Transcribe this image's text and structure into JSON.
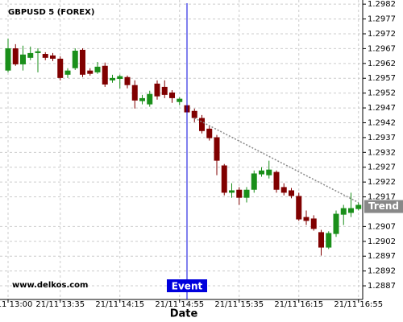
{
  "chart_data": {
    "type": "candlestick",
    "title": "GBPUSD 5 (FOREX)",
    "x_label": "Date",
    "watermark": "www.delkos.com",
    "categories": [
      "21/11 13:00",
      null,
      null,
      null,
      null,
      null,
      null,
      "21/11 13:35",
      null,
      null,
      null,
      null,
      null,
      null,
      null,
      "21/11 14:15",
      null,
      null,
      null,
      null,
      null,
      null,
      null,
      "21/11 14:55",
      null,
      null,
      null,
      null,
      null,
      null,
      null,
      "21/11 15:35",
      null,
      null,
      null,
      null,
      null,
      null,
      null,
      "21/11 16:15",
      null,
      null,
      null,
      null,
      null,
      null,
      null,
      "21/11 16:55"
    ],
    "open": [
      1.29596,
      1.29671,
      1.29617,
      1.29639,
      1.29655,
      1.29652,
      1.29647,
      1.29636,
      1.29582,
      1.29604,
      1.29666,
      1.29596,
      1.2959,
      1.29612,
      1.29563,
      1.29568,
      1.29574,
      1.29547,
      1.29493,
      1.29482,
      1.29552,
      1.29541,
      1.29522,
      1.2949,
      1.29479,
      1.2946,
      1.29436,
      1.294,
      1.29371,
      1.29276,
      1.29184,
      1.29194,
      1.29167,
      1.29194,
      1.29246,
      1.29243,
      1.29254,
      1.29203,
      1.29192,
      1.29173,
      1.29102,
      1.29097,
      1.29051,
      1.28999,
      1.29045,
      1.2911,
      1.29116,
      1.29129
    ],
    "high": [
      1.29704,
      1.29685,
      1.2968,
      1.29677,
      1.29671,
      1.29658,
      1.29655,
      1.29644,
      1.29604,
      1.29671,
      1.29671,
      1.29604,
      1.29625,
      1.29623,
      1.29582,
      1.29582,
      1.29579,
      1.29563,
      1.29514,
      1.29528,
      1.29563,
      1.29563,
      1.2953,
      1.29506,
      1.29487,
      1.29468,
      1.29446,
      1.29409,
      1.29379,
      1.29281,
      1.29216,
      1.29203,
      1.29203,
      1.29259,
      1.2927,
      1.29292,
      1.29259,
      1.29216,
      1.292,
      1.29184,
      1.29124,
      1.29108,
      1.29059,
      1.29054,
      1.29124,
      1.29143,
      1.29184,
      1.29151
    ],
    "low": [
      1.2959,
      1.29612,
      1.29596,
      1.29631,
      1.2959,
      1.29631,
      1.29628,
      1.29563,
      1.29571,
      1.29598,
      1.29574,
      1.29579,
      1.29585,
      1.29541,
      1.29555,
      1.29536,
      1.29536,
      1.29468,
      1.29482,
      1.29474,
      1.29498,
      1.29503,
      1.29487,
      1.29479,
      1.29449,
      1.29422,
      1.29384,
      1.2936,
      1.29243,
      1.29175,
      1.29167,
      1.29143,
      1.29151,
      1.29184,
      1.29238,
      1.29232,
      1.29184,
      1.29175,
      1.29165,
      1.29089,
      1.29075,
      1.29056,
      1.28972,
      1.28994,
      1.29035,
      1.29075,
      1.29102,
      1.29124
    ],
    "close": [
      1.29671,
      1.29617,
      1.2965,
      1.29655,
      1.29661,
      1.29639,
      1.29636,
      1.29571,
      1.29596,
      1.29663,
      1.29582,
      1.29585,
      1.29609,
      1.29549,
      1.29571,
      1.29577,
      1.29547,
      1.29495,
      1.29503,
      1.29517,
      1.29509,
      1.29514,
      1.29503,
      1.29501,
      1.29455,
      1.29436,
      1.29392,
      1.29368,
      1.29292,
      1.29184,
      1.29192,
      1.29167,
      1.29194,
      1.29249,
      1.29259,
      1.29262,
      1.29194,
      1.29184,
      1.29173,
      1.29094,
      1.29089,
      1.29062,
      1.28999,
      1.29048,
      1.29113,
      1.29132,
      1.29132,
      1.29143
    ],
    "up_color": "#1a8f1a",
    "down_color": "#800000",
    "ylim": [
      1.28824,
      1.29834
    ],
    "yticks": [
      1.2887,
      1.2892,
      1.2897,
      1.2902,
      1.2907,
      1.2917,
      1.2922,
      1.2927,
      1.2932,
      1.2937,
      1.2942,
      1.2947,
      1.2952,
      1.2957,
      1.2962,
      1.2967,
      1.2972,
      1.2977,
      1.2982
    ],
    "grid": true,
    "event": {
      "index": 24,
      "label": "Event",
      "color": "#0000dd"
    },
    "trend": {
      "label": "Trend",
      "start_index": 25,
      "start_value": 1.29436,
      "end_index": 47,
      "end_value": 1.29151,
      "color": "#888888"
    }
  }
}
